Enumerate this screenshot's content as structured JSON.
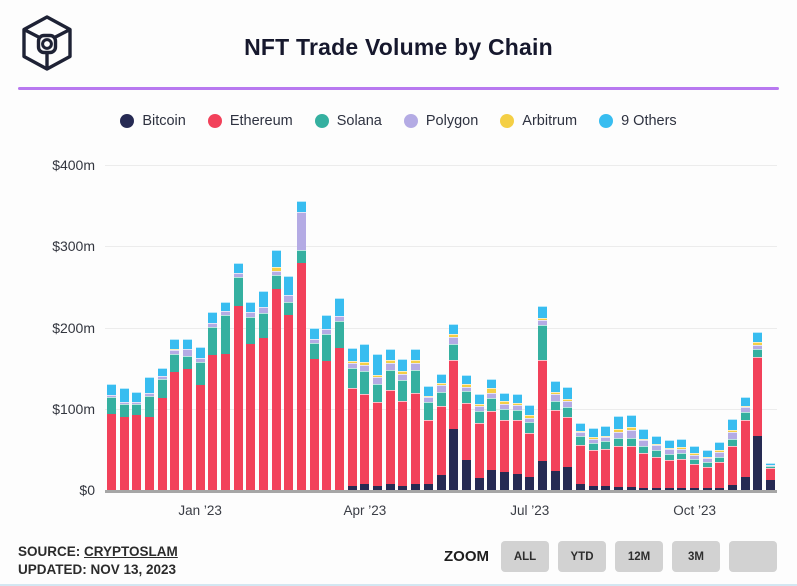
{
  "header": {
    "title": "NFT Trade Volume by Chain",
    "accent_rule_color": "#b879f0"
  },
  "footer": {
    "source_label": "SOURCE:",
    "source_value": "CRYPTOSLAM",
    "updated_text": "UPDATED: NOV 13, 2023",
    "zoom_label": "ZOOM",
    "zoom_buttons": [
      "ALL",
      "YTD",
      "12M",
      "3M",
      ""
    ]
  },
  "chart_data": {
    "type": "bar",
    "stacked": true,
    "title": "NFT Trade Volume by Chain",
    "unit": "USD millions, weekly",
    "ylim": [
      0,
      400
    ],
    "y_ticks": [
      "$400m",
      "$300m",
      "$200m",
      "$100m",
      "$0"
    ],
    "y_tick_values": [
      400,
      300,
      200,
      100,
      0
    ],
    "grid": "horizontal",
    "legend_position": "top",
    "x_tick_labels": [
      {
        "label": "Jan ’23",
        "bar_index": 7
      },
      {
        "label": "Apr ’23",
        "bar_index": 20
      },
      {
        "label": "Jul ’23",
        "bar_index": 33
      },
      {
        "label": "Oct ’23",
        "bar_index": 46
      }
    ],
    "series": [
      {
        "name": "Bitcoin",
        "color": "#262a53",
        "values": [
          0,
          0,
          0,
          0,
          0,
          0,
          0,
          0,
          0,
          0,
          0,
          0,
          0,
          0,
          0,
          0,
          0,
          0,
          0,
          5,
          8,
          5,
          8,
          5,
          8,
          8,
          18,
          75,
          37,
          15,
          25,
          22,
          20,
          16,
          36,
          24,
          28,
          8,
          5,
          5,
          4,
          4,
          3,
          3,
          3,
          2,
          2,
          2,
          2,
          6,
          16,
          67,
          12
        ]
      },
      {
        "name": "Ethereum",
        "color": "#f2415a",
        "values": [
          94,
          90,
          92,
          90,
          113,
          145,
          149,
          129,
          166,
          168,
          226,
          180,
          187,
          247,
          215,
          279,
          161,
          159,
          175,
          120,
          110,
          103,
          115,
          105,
          112,
          78,
          85,
          85,
          70,
          68,
          72,
          64,
          66,
          54,
          124,
          74,
          62,
          48,
          44,
          46,
          50,
          50,
          42,
          38,
          34,
          36,
          30,
          26,
          32,
          48,
          70,
          97,
          15
        ]
      },
      {
        "name": "Solana",
        "color": "#35b0a0",
        "values": [
          20,
          16,
          14,
          26,
          24,
          22,
          16,
          29,
          35,
          47,
          36,
          33,
          31,
          18,
          17,
          17,
          20,
          33,
          33,
          25,
          28,
          23,
          25,
          26,
          28,
          22,
          18,
          20,
          15,
          14,
          16,
          14,
          13,
          14,
          43,
          12,
          12,
          10,
          9,
          9,
          10,
          10,
          9,
          8,
          7,
          7,
          6,
          6,
          7,
          9,
          10,
          10,
          2
        ]
      },
      {
        "name": "Polygon",
        "color": "#b4abe4",
        "values": [
          3,
          2,
          2,
          3,
          3,
          5,
          8,
          5,
          4,
          5,
          5,
          6,
          7,
          5,
          8,
          46,
          5,
          6,
          6,
          6,
          8,
          8,
          8,
          7,
          8,
          6,
          8,
          8,
          5,
          6,
          7,
          6,
          6,
          5,
          6,
          8,
          7,
          5,
          5,
          5,
          8,
          10,
          7,
          6,
          6,
          6,
          5,
          5,
          6,
          8,
          6,
          4,
          1
        ]
      },
      {
        "name": "Arbitrum",
        "color": "#f4cf45",
        "values": [
          0,
          0,
          0,
          0,
          0,
          2,
          0,
          0,
          0,
          0,
          0,
          0,
          0,
          4,
          0,
          0,
          0,
          0,
          0,
          3,
          4,
          3,
          4,
          3,
          4,
          2,
          3,
          4,
          3,
          3,
          5,
          3,
          2,
          3,
          3,
          3,
          3,
          2,
          2,
          2,
          3,
          3,
          2,
          2,
          2,
          2,
          2,
          2,
          2,
          3,
          2,
          4,
          0
        ]
      },
      {
        "name": "9 Others",
        "color": "#38bdf0",
        "values": [
          14,
          17,
          13,
          20,
          10,
          12,
          13,
          13,
          14,
          12,
          12,
          13,
          20,
          22,
          23,
          14,
          14,
          17,
          22,
          16,
          22,
          26,
          14,
          15,
          14,
          12,
          11,
          12,
          11,
          12,
          12,
          11,
          11,
          13,
          14,
          13,
          15,
          10,
          11,
          12,
          16,
          15,
          12,
          10,
          9,
          10,
          9,
          8,
          10,
          14,
          10,
          12,
          3
        ]
      }
    ]
  }
}
